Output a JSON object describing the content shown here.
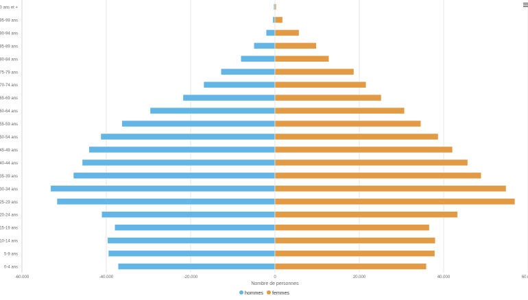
{
  "chart_data": {
    "type": "bar",
    "orientation": "horizontal",
    "stacked": true,
    "xlabel": "Nombre de personnes",
    "xlim": [
      -60000,
      60000
    ],
    "xticks": [
      -60000,
      -40000,
      -20000,
      0,
      20000,
      40000,
      60000
    ],
    "xtick_labels": [
      "-60.000",
      "-40.000",
      "-20.000",
      "0",
      "20.000",
      "40.000",
      "60.000"
    ],
    "grid": true,
    "legend_position": "bottom",
    "categories": [
      "100 ans et +",
      "95-99 ans",
      "90-94 ans",
      "85-89 ans",
      "80-84 ans",
      "75-79 ans",
      "70-74 ans",
      "65-69 ans",
      "60-64 ans",
      "55-59 ans",
      "50-54 ans",
      "45-49 ans",
      "40-44 ans",
      "35-39 ans",
      "30-34 ans",
      "25-29 ans",
      "20-24 ans",
      "15-19 ans",
      "10-14 ans",
      "5-9 ans",
      "0-4 ans"
    ],
    "series": [
      {
        "name": "hommes",
        "color": "#63b5e5",
        "values": [
          -300,
          -500,
          -2100,
          -5000,
          -8100,
          -12800,
          -16900,
          -21800,
          -29600,
          -36300,
          -41300,
          -44100,
          -45700,
          -47800,
          -53200,
          -51700,
          -41100,
          -38000,
          -39700,
          -39500,
          -37200
        ]
      },
      {
        "name": "femmes",
        "color": "#e29a44",
        "values": [
          300,
          1800,
          5700,
          9800,
          12800,
          18700,
          21600,
          25200,
          30700,
          34600,
          38700,
          42100,
          45700,
          48900,
          54800,
          56900,
          43300,
          36600,
          38000,
          37900,
          35900
        ]
      }
    ]
  },
  "menu_icon": "hamburger-menu-icon"
}
